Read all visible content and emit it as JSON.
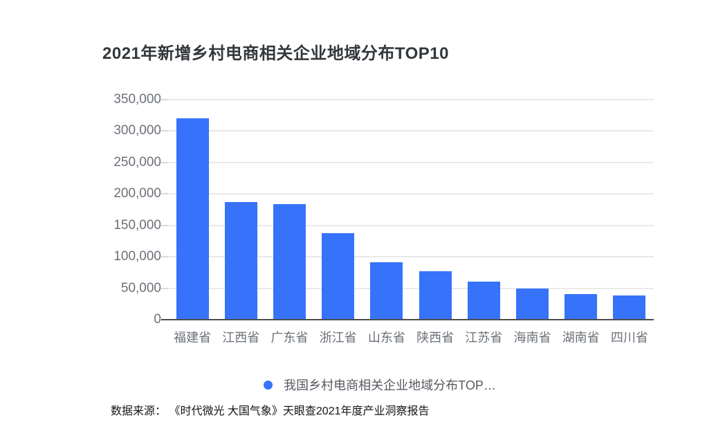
{
  "chart_data": {
    "type": "bar",
    "title": "2021年新增乡村电商相关企业地域分布TOP10",
    "categories": [
      "福建省",
      "江西省",
      "广东省",
      "浙江省",
      "山东省",
      "陕西省",
      "江苏省",
      "海南省",
      "湖南省",
      "四川省"
    ],
    "values": [
      320000,
      187000,
      184000,
      138000,
      91000,
      77000,
      60000,
      49000,
      41000,
      39000
    ],
    "legend": {
      "label": "我国乡村电商相关企业地域分布TOP…",
      "position": "bottom",
      "marker": "circle"
    },
    "xlabel": "",
    "ylabel": "",
    "ylim": [
      0,
      350000
    ],
    "ytick_step": 50000,
    "yticks": [
      "0",
      "50,000",
      "100,000",
      "150,000",
      "200,000",
      "250,000",
      "300,000",
      "350,000"
    ],
    "grid": true
  },
  "source_note": "数据来源： 《时代微光 大国气象》天眼查2021年度产业洞察报告",
  "colors": {
    "bar": "#3773fa",
    "title_text": "#32373c",
    "axis_label": "#6b7077",
    "legend_text": "#55595f",
    "gridline": "#e9e9e9",
    "axis_line": "#4c4c4c",
    "tick": "#d9d9d9",
    "source_text": "#141414",
    "background": "#ffffff"
  }
}
